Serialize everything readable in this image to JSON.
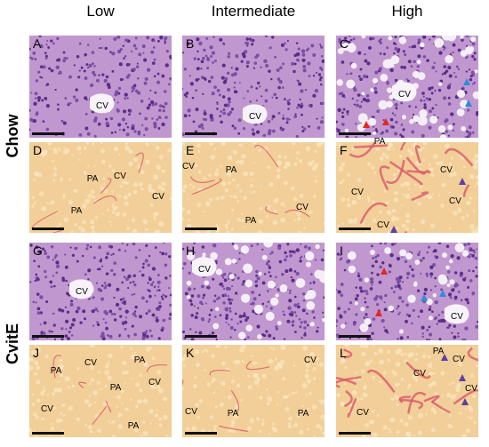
{
  "columns": [
    "Low",
    "Intermediate",
    "High"
  ],
  "rows": [
    "Chow",
    "CvitE"
  ],
  "panels": [
    {
      "letter": "A",
      "labels": [
        "CV"
      ]
    },
    {
      "letter": "B",
      "labels": [
        "CV"
      ]
    },
    {
      "letter": "C",
      "labels": [
        "CV"
      ]
    },
    {
      "letter": "D",
      "labels": [
        "PA",
        "CV",
        "CV",
        "PA"
      ]
    },
    {
      "letter": "E",
      "labels": [
        "CV",
        "PA",
        "CV",
        "PA"
      ]
    },
    {
      "letter": "F",
      "labels": [
        "PA",
        "CV",
        "CV",
        "CV",
        "CV"
      ]
    },
    {
      "letter": "G",
      "labels": [
        "CV"
      ]
    },
    {
      "letter": "H",
      "labels": [
        "CV"
      ]
    },
    {
      "letter": "I",
      "labels": [
        "CV"
      ]
    },
    {
      "letter": "J",
      "labels": [
        "PA",
        "CV",
        "PA",
        "PA",
        "CV",
        "CV",
        "PA"
      ]
    },
    {
      "letter": "K",
      "labels": [
        "CV",
        "CV",
        "PA",
        "PA"
      ]
    },
    {
      "letter": "L",
      "labels": [
        "PA",
        "CV",
        "CV",
        "CV",
        "CV"
      ]
    }
  ]
}
